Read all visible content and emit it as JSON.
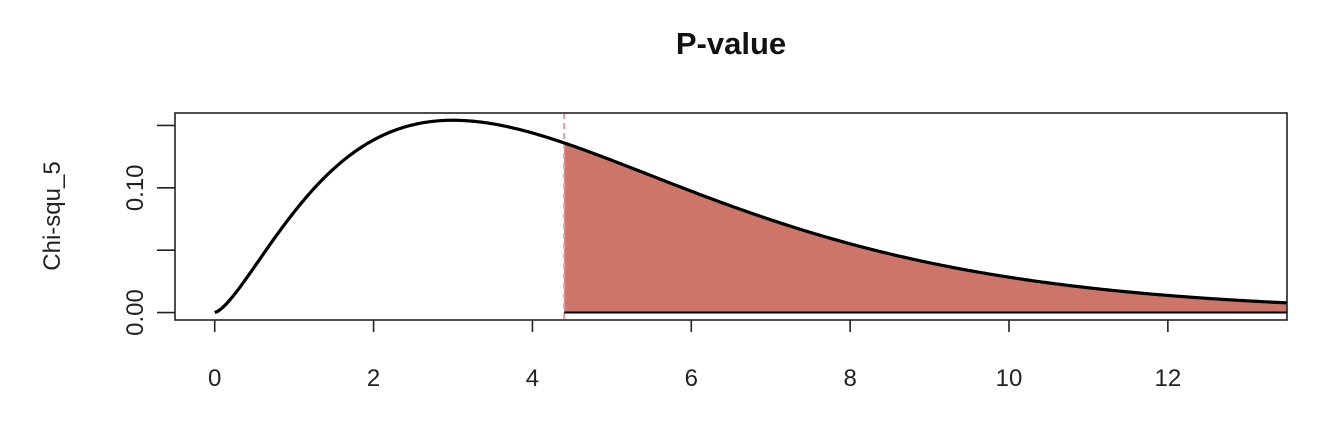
{
  "chart_data": {
    "type": "area",
    "title": "P-value",
    "xlabel": "",
    "ylabel": "Chi-squ_5",
    "xlim": [
      -0.5,
      13.5
    ],
    "ylim": [
      -0.006,
      0.16
    ],
    "x_ticks": [
      0,
      2,
      4,
      6,
      8,
      10,
      12
    ],
    "x_tick_labels": [
      "0",
      "2",
      "4",
      "6",
      "8",
      "10",
      "12"
    ],
    "y_ticks": [
      0.0,
      0.05,
      0.1,
      0.15
    ],
    "y_tick_labels": [
      "0.00",
      "",
      "0.10",
      ""
    ],
    "distribution": "chi-squared",
    "degrees_of_freedom": 5,
    "curve_x_range": [
      0,
      13.5
    ],
    "shade_from_x": 4.4,
    "shade_to_x": 13.5,
    "grid": false,
    "colors": {
      "curve": "#000000",
      "shade": "#cd7569",
      "cutoff_line": "#e39aa6",
      "axis": "#222222"
    }
  }
}
